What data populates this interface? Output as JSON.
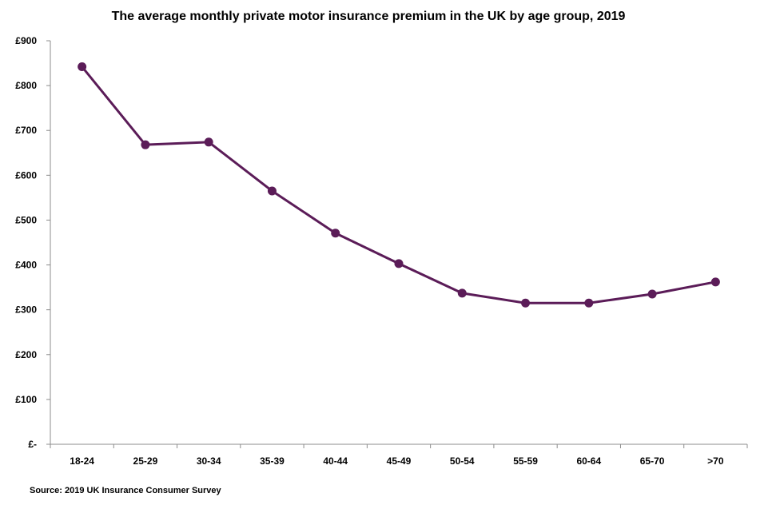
{
  "chart_data": {
    "type": "line",
    "title": "The average monthly private motor insurance premium in the UK by age group, 2019",
    "categories": [
      "18-24",
      "25-29",
      "30-34",
      "35-39",
      "40-44",
      "45-49",
      "50-54",
      "55-59",
      "60-64",
      "65-70",
      ">70"
    ],
    "series": [
      {
        "values": [
          842,
          668,
          674,
          565,
          471,
          403,
          337,
          315,
          315,
          335,
          362
        ]
      }
    ],
    "ylim": [
      0,
      900
    ],
    "yticks": [
      0,
      100,
      200,
      300,
      400,
      500,
      600,
      700,
      800,
      900
    ],
    "ytick_labels": [
      "£-",
      "£100",
      "£200",
      "£300",
      "£400",
      "£500",
      "£600",
      "£700",
      "£800",
      "£900"
    ],
    "xlabel": "",
    "ylabel": "",
    "grid": false,
    "legend": "none",
    "line_color": "#5b1c58"
  },
  "source": "Source:  2019 UK Insurance Consumer Survey"
}
